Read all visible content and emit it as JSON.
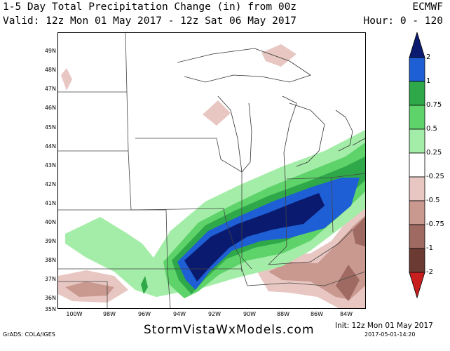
{
  "header": {
    "title": "1-5 Day Total Precipitation Change (in) from 00z",
    "valid": "Valid: 12z Mon 01 May 2017 - 12z Sat 06 May 2017",
    "model": "ECMWF",
    "hour": "Hour: 0 - 120"
  },
  "map": {
    "lat_labels": [
      "49N",
      "48N",
      "47N",
      "46N",
      "45N",
      "44N",
      "43N",
      "42N",
      "41N",
      "40N",
      "39N",
      "38N",
      "37N",
      "36N",
      "35N"
    ],
    "lon_labels": [
      "100W",
      "98W",
      "96W",
      "94W",
      "92W",
      "90W",
      "88W",
      "86W",
      "84W"
    ]
  },
  "colorbar": {
    "labels": [
      "2",
      "1",
      "0.75",
      "0.5",
      "0.25",
      "-0.25",
      "-0.5",
      "-0.75",
      "-1",
      "-2"
    ],
    "colors": [
      "#0a1a6e",
      "#1e5fd6",
      "#2fa84a",
      "#5ed36a",
      "#a4eda8",
      "#ffffff",
      "#e8c7c2",
      "#c9988f",
      "#9e6a62",
      "#6b3b33",
      "#c81e1e"
    ]
  },
  "footer": {
    "grads": "GrADS: COLA/IGES",
    "site": "StormVistaWxModels.com",
    "init": "Init: 12z Mon 01 May 2017",
    "stamp": "2017-05-01-14:20"
  }
}
